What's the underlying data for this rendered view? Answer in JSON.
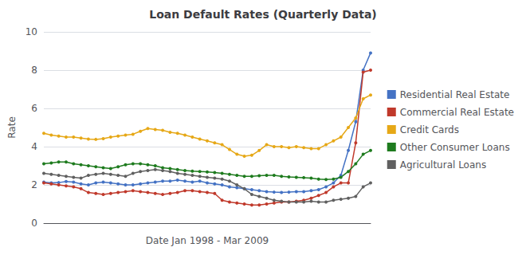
{
  "chart_data": {
    "type": "line",
    "title": "Loan Default Rates (Quarterly Data)",
    "xlabel": "Date Jan 1998 - Mar 2009",
    "ylabel": "Rate",
    "categories": [
      null,
      null,
      null,
      null,
      null,
      null,
      null,
      null,
      null,
      null,
      null,
      null,
      null,
      null,
      null,
      null,
      null,
      null,
      null,
      null,
      null,
      null,
      null,
      null,
      null,
      null,
      null,
      null,
      null,
      null,
      null,
      null,
      null,
      null,
      null,
      null,
      null,
      null,
      null,
      null,
      null,
      null,
      null,
      null,
      null
    ],
    "series": [
      {
        "name": "Residential Real Estate",
        "color": "#4472C4",
        "values": [
          2.15,
          2.1,
          2.12,
          2.18,
          2.15,
          2.05,
          2.0,
          2.1,
          2.15,
          2.1,
          2.05,
          2.0,
          2.0,
          2.05,
          2.1,
          2.15,
          2.2,
          2.2,
          2.25,
          2.2,
          2.15,
          2.2,
          2.1,
          2.05,
          2.0,
          1.9,
          1.85,
          1.8,
          1.75,
          1.7,
          1.65,
          1.62,
          1.6,
          1.62,
          1.65,
          1.65,
          1.7,
          1.75,
          1.9,
          2.1,
          2.5,
          3.8,
          5.3,
          8.0,
          8.9
        ]
      },
      {
        "name": "Commercial Real Estate",
        "color": "#C0392B",
        "values": [
          2.1,
          2.05,
          2.0,
          1.95,
          1.9,
          1.8,
          1.6,
          1.55,
          1.5,
          1.55,
          1.6,
          1.65,
          1.7,
          1.65,
          1.6,
          1.55,
          1.5,
          1.55,
          1.6,
          1.7,
          1.7,
          1.65,
          1.6,
          1.55,
          1.2,
          1.1,
          1.05,
          1.0,
          0.95,
          0.95,
          1.0,
          1.05,
          1.1,
          1.1,
          1.15,
          1.2,
          1.3,
          1.45,
          1.6,
          1.9,
          2.1,
          2.1,
          4.2,
          7.9,
          8.0
        ]
      },
      {
        "name": "Credit Cards",
        "color": "#E6A817",
        "values": [
          4.7,
          4.6,
          4.55,
          4.5,
          4.5,
          4.45,
          4.4,
          4.38,
          4.42,
          4.5,
          4.55,
          4.6,
          4.65,
          4.8,
          4.95,
          4.9,
          4.85,
          4.75,
          4.7,
          4.6,
          4.5,
          4.4,
          4.3,
          4.2,
          4.1,
          3.85,
          3.6,
          3.5,
          3.55,
          3.8,
          4.1,
          4.0,
          4.0,
          3.95,
          4.0,
          3.95,
          3.9,
          3.9,
          4.1,
          4.3,
          4.5,
          5.0,
          5.5,
          6.5,
          6.7
        ]
      },
      {
        "name": "Other Consumer Loans",
        "color": "#1E7B1E",
        "values": [
          3.1,
          3.15,
          3.2,
          3.2,
          3.1,
          3.05,
          3.0,
          2.95,
          2.9,
          2.85,
          2.95,
          3.05,
          3.1,
          3.1,
          3.05,
          3.0,
          2.9,
          2.85,
          2.8,
          2.75,
          2.72,
          2.7,
          2.68,
          2.65,
          2.6,
          2.55,
          2.5,
          2.45,
          2.45,
          2.48,
          2.5,
          2.5,
          2.45,
          2.42,
          2.4,
          2.38,
          2.35,
          2.3,
          2.28,
          2.3,
          2.4,
          2.7,
          3.1,
          3.6,
          3.8
        ]
      },
      {
        "name": "Agricultural Loans",
        "color": "#606060",
        "values": [
          2.6,
          2.55,
          2.5,
          2.45,
          2.4,
          2.35,
          2.5,
          2.55,
          2.6,
          2.55,
          2.5,
          2.45,
          2.6,
          2.7,
          2.75,
          2.8,
          2.75,
          2.7,
          2.6,
          2.55,
          2.5,
          2.45,
          2.4,
          2.35,
          2.3,
          2.2,
          2.0,
          1.8,
          1.5,
          1.4,
          1.3,
          1.2,
          1.15,
          1.1,
          1.1,
          1.1,
          1.15,
          1.1,
          1.1,
          1.2,
          1.25,
          1.3,
          1.4,
          1.9,
          2.1
        ]
      }
    ],
    "ylim": [
      0,
      10
    ],
    "yticks": [
      0,
      2,
      4,
      6,
      8,
      10
    ],
    "grid": true,
    "legend": "right",
    "marker": "circle",
    "tick_labels": "y"
  }
}
